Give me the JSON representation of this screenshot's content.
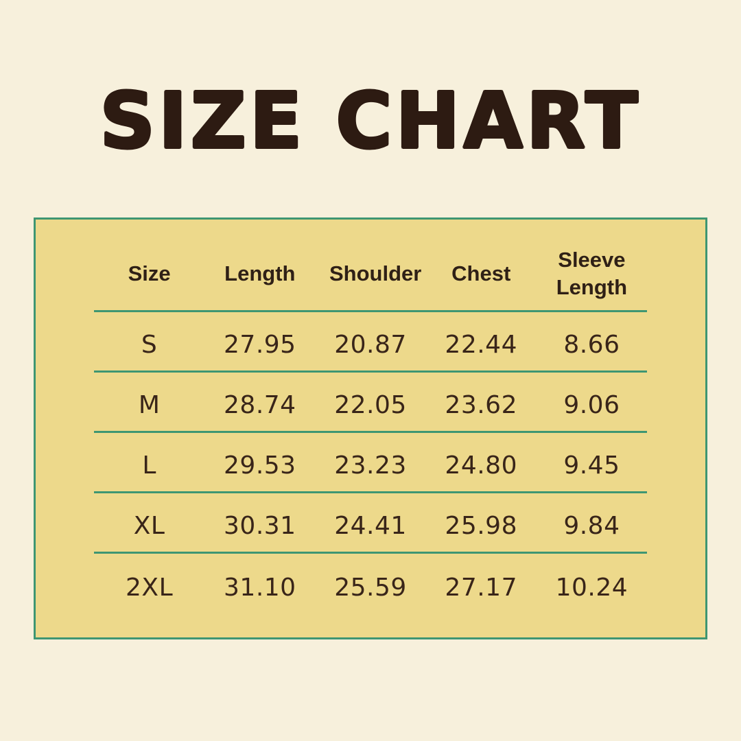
{
  "title": "SIZE CHART",
  "colors": {
    "page_background": "#f7f0dc",
    "panel_background": "#edd98b",
    "border_green": "#3e9672",
    "title_brown": "#2d1b12",
    "text_brown": "#392519"
  },
  "table": {
    "headers": [
      "Size",
      "Length",
      "Shoulder",
      "Chest",
      "Sleeve Length"
    ],
    "rows": [
      {
        "cells": [
          "S",
          "27.95",
          "20.87",
          "22.44",
          "8.66"
        ]
      },
      {
        "cells": [
          "M",
          "28.74",
          "22.05",
          "23.62",
          "9.06"
        ]
      },
      {
        "cells": [
          "L",
          "29.53",
          "23.23",
          "24.80",
          "9.45"
        ]
      },
      {
        "cells": [
          "XL",
          "30.31",
          "24.41",
          "25.98",
          "9.84"
        ]
      },
      {
        "cells": [
          "2XL",
          "31.10",
          "25.59",
          "27.17",
          "10.24"
        ]
      }
    ]
  }
}
